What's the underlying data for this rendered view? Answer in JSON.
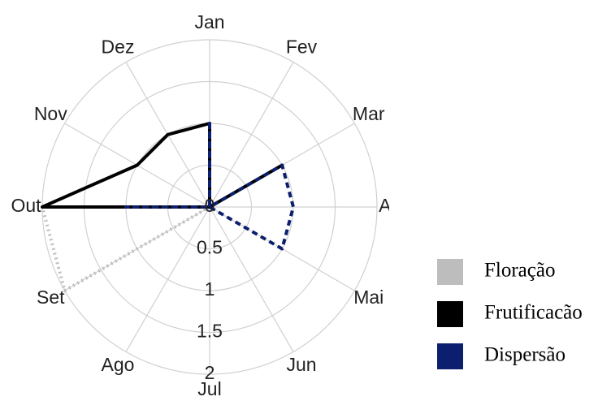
{
  "chart_data": {
    "type": "radar",
    "categories": [
      "Jan",
      "Fev",
      "Mar",
      "Abr",
      "Mai",
      "Jun",
      "Jul",
      "Ago",
      "Set",
      "Out",
      "Nov",
      "Dez"
    ],
    "rlim": [
      0,
      2
    ],
    "rticks": [
      0,
      0.5,
      1,
      1.5,
      2
    ],
    "series": [
      {
        "name": "Floração",
        "color": "#bdbdbd",
        "linestyle": "dotted",
        "values": [
          0,
          0,
          0,
          0,
          0,
          0,
          0,
          0,
          2,
          2,
          0,
          0
        ]
      },
      {
        "name": "Frutificacão",
        "color": "#000000",
        "linestyle": "solid",
        "values": [
          1,
          0,
          1,
          0,
          0,
          0,
          0,
          0,
          0,
          2,
          1,
          1
        ]
      },
      {
        "name": "Dispersão",
        "color": "#0b1f6e",
        "linestyle": "dashed",
        "values": [
          1,
          0,
          1,
          1,
          1,
          0,
          0,
          0,
          0,
          1,
          0,
          0
        ]
      }
    ]
  }
}
